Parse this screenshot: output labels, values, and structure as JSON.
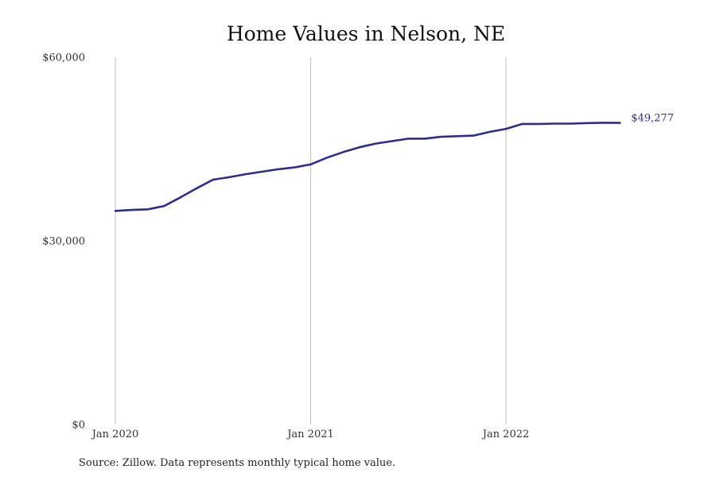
{
  "chart_data": {
    "type": "line",
    "title": "Home Values in Nelson, NE",
    "xlabel": "",
    "ylabel": "",
    "ylim": [
      0,
      60000
    ],
    "y_ticks": [
      {
        "value": 0,
        "label": "$0"
      },
      {
        "value": 30000,
        "label": "$30,000"
      },
      {
        "value": 60000,
        "label": "$60,000"
      }
    ],
    "x_ticks": [
      {
        "value": "2020-01",
        "label": "Jan 2020"
      },
      {
        "value": "2021-01",
        "label": "Jan 2021"
      },
      {
        "value": "2022-01",
        "label": "Jan 2022"
      }
    ],
    "grid": "vertical lines at x ticks",
    "series": [
      {
        "color": "#2e2d8c",
        "x": [
          "2020-01",
          "2020-02",
          "2020-03",
          "2020-04",
          "2020-05",
          "2020-06",
          "2020-07",
          "2020-08",
          "2020-09",
          "2020-10",
          "2020-11",
          "2020-12",
          "2021-01",
          "2021-02",
          "2021-03",
          "2021-04",
          "2021-05",
          "2021-06",
          "2021-07",
          "2021-08",
          "2021-09",
          "2021-10",
          "2021-11",
          "2021-12",
          "2022-01",
          "2022-02",
          "2022-03",
          "2022-04",
          "2022-05",
          "2022-06",
          "2022-07",
          "2022-08"
        ],
        "values": [
          34900,
          35050,
          35150,
          35700,
          37100,
          38600,
          40000,
          40400,
          40900,
          41300,
          41700,
          42000,
          42500,
          43600,
          44500,
          45300,
          45900,
          46300,
          46700,
          46700,
          47000,
          47100,
          47200,
          47800,
          48300,
          49100,
          49100,
          49150,
          49150,
          49250,
          49300,
          49277
        ],
        "end_label": "$49,277"
      }
    ],
    "source": "Source: Zillow. Data represents monthly typical home value."
  }
}
